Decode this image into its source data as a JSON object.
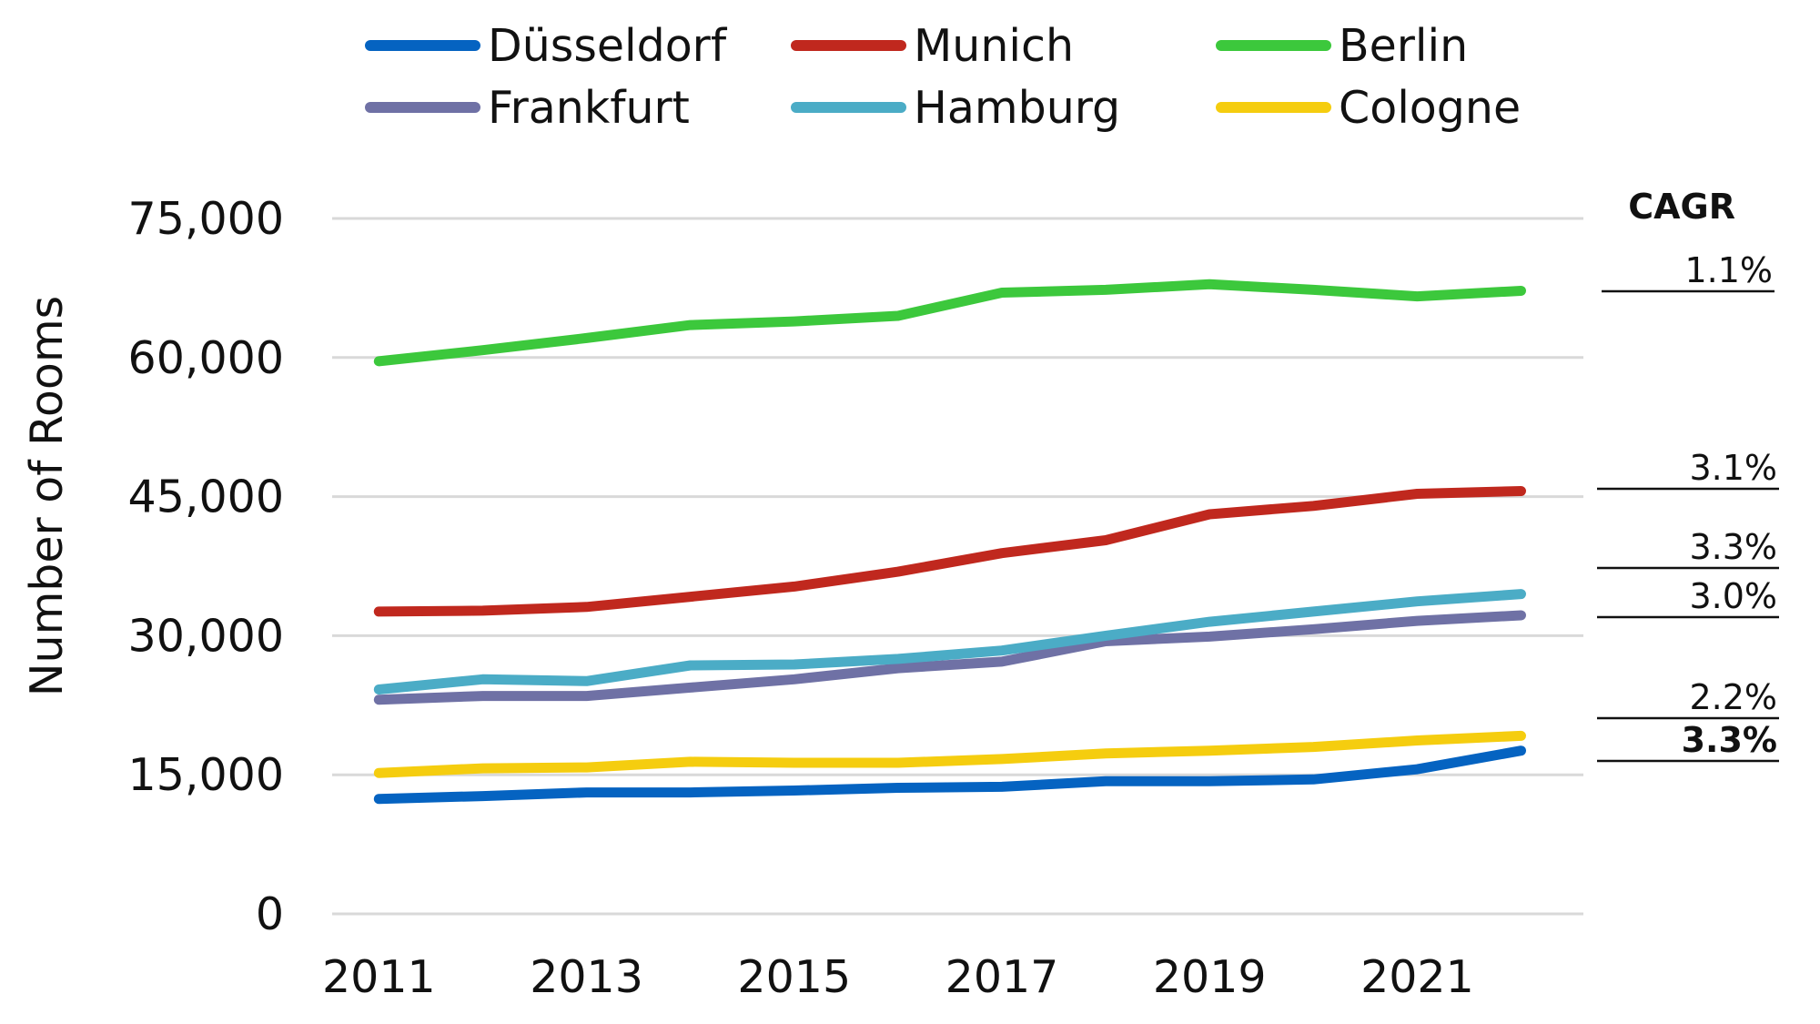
{
  "chart_data": {
    "type": "line",
    "title": "",
    "xlabel": "",
    "ylabel": "Number of Rooms",
    "ylim": [
      0,
      75000
    ],
    "yticks": [
      {
        "value": 0,
        "label": "0"
      },
      {
        "value": 15000,
        "label": "15,000"
      },
      {
        "value": 30000,
        "label": "30,000"
      },
      {
        "value": 45000,
        "label": "45,000"
      },
      {
        "value": 60000,
        "label": "60,000"
      },
      {
        "value": 75000,
        "label": "75,000"
      }
    ],
    "xticks": [
      {
        "value": 2011,
        "label": "2011"
      },
      {
        "value": 2013,
        "label": "2013"
      },
      {
        "value": 2015,
        "label": "2015"
      },
      {
        "value": 2017,
        "label": "2017"
      },
      {
        "value": 2019,
        "label": "2019"
      },
      {
        "value": 2021,
        "label": "2021"
      }
    ],
    "xlim": [
      2010.55,
      2022.6
    ],
    "grid": "horizontal",
    "legend_position": "top",
    "x": [
      2011,
      2012,
      2013,
      2014,
      2015,
      2016,
      2017,
      2018,
      2019,
      2020,
      2021,
      2022
    ],
    "series": [
      {
        "name": "Düsseldorf",
        "color": "#0563c1",
        "values": [
          12400,
          12700,
          13100,
          13100,
          13300,
          13600,
          13700,
          14300,
          14300,
          14500,
          15600,
          17600
        ]
      },
      {
        "name": "Munich",
        "color": "#c0281e",
        "values": [
          32600,
          32700,
          33100,
          34200,
          35300,
          36900,
          38900,
          40300,
          43100,
          44000,
          45300,
          45600
        ]
      },
      {
        "name": "Berlin",
        "color": "#3cc83c",
        "values": [
          59600,
          60800,
          62100,
          63500,
          63900,
          64500,
          67000,
          67300,
          67900,
          67300,
          66600,
          67200
        ]
      },
      {
        "name": "Frankfurt",
        "color": "#6f71a5",
        "values": [
          23100,
          23500,
          23500,
          24400,
          25300,
          26500,
          27200,
          29400,
          29900,
          30700,
          31600,
          32200
        ]
      },
      {
        "name": "Hamburg",
        "color": "#4bacc6",
        "values": [
          24200,
          25300,
          25100,
          26800,
          26900,
          27500,
          28400,
          30000,
          31500,
          32600,
          33700,
          34500
        ]
      },
      {
        "name": "Cologne",
        "color": "#f5cd0f",
        "values": [
          15200,
          15700,
          15800,
          16400,
          16300,
          16300,
          16700,
          17300,
          17600,
          18000,
          18700,
          19200
        ]
      }
    ],
    "annotations": {
      "cagr_title": "CAGR",
      "cagr_labels": [
        {
          "series": "Berlin",
          "text": "1.1%",
          "bold": false
        },
        {
          "series": "Munich",
          "text": "3.1%",
          "bold": false
        },
        {
          "series": "Hamburg",
          "text": "3.3%",
          "bold": false
        },
        {
          "series": "Frankfurt",
          "text": "3.0%",
          "bold": false
        },
        {
          "series": "Cologne",
          "text": "2.2%",
          "bold": false
        },
        {
          "series": "Düsseldorf",
          "text": "3.3%",
          "bold": true
        }
      ]
    }
  }
}
